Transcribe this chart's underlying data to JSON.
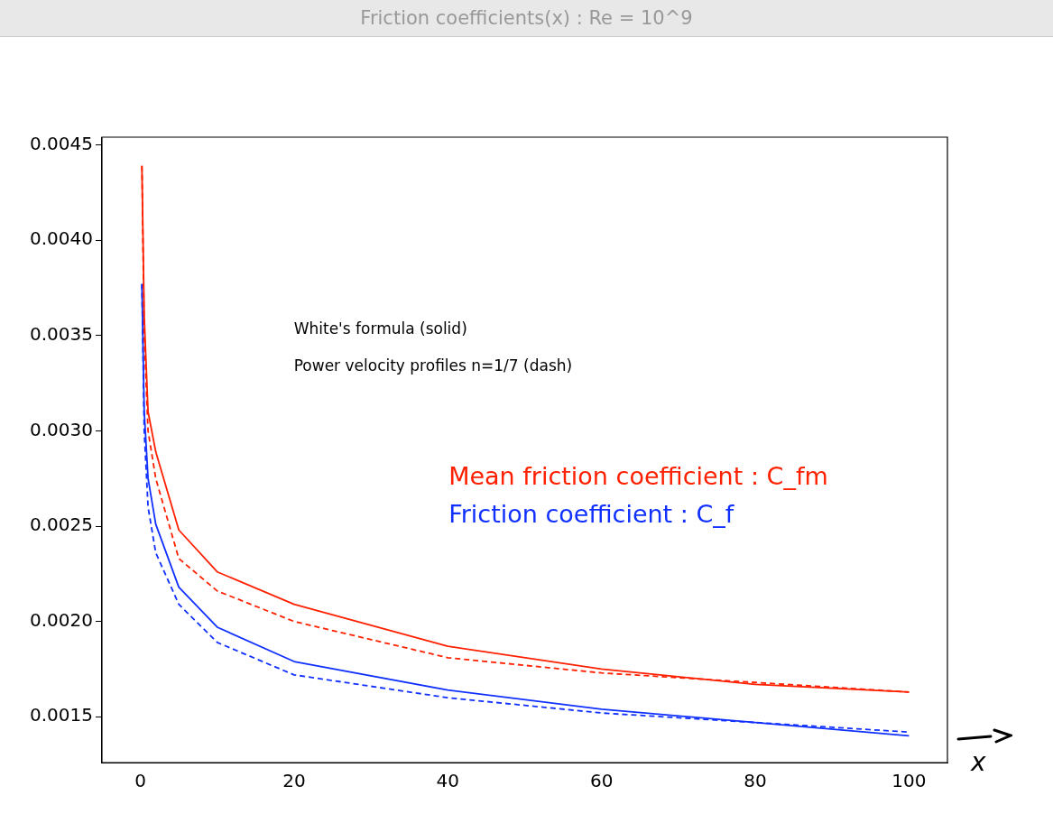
{
  "chart_data": {
    "type": "line",
    "title": "Friction coefficients(x) : Re = 10^9",
    "xlabel": "x",
    "annotations": [
      "White's formula (solid)",
      "Power velocity profiles n=1/7 (dash)"
    ],
    "xlim": [
      -5,
      105
    ],
    "xticks": [
      0,
      20,
      40,
      60,
      80,
      100
    ],
    "ylim": [
      0.00126,
      0.00454
    ],
    "yticks": [
      {
        "value": 0.0015,
        "label": "0.0015"
      },
      {
        "value": 0.002,
        "label": "0.0020"
      },
      {
        "value": 0.0025,
        "label": "0.0025"
      },
      {
        "value": 0.003,
        "label": "0.0030"
      },
      {
        "value": 0.0035,
        "label": "0.0035"
      },
      {
        "value": 0.004,
        "label": "0.0040"
      },
      {
        "value": 0.0045,
        "label": "0.0045"
      }
    ],
    "grid": false,
    "legend": false,
    "marker": "none",
    "series": [
      {
        "name": "Mean friction coefficient : C_fm",
        "color": "#ff2000",
        "line_style": "solid",
        "x": [
          0.2,
          0.5,
          1,
          2,
          5,
          10,
          20,
          40,
          60,
          80,
          100
        ],
        "values": [
          0.00439,
          0.0036,
          0.0031,
          0.00289,
          0.00248,
          0.00226,
          0.00209,
          0.00187,
          0.00175,
          0.00167,
          0.00163
        ]
      },
      {
        "color": "#ff2000",
        "line_style": "dashed",
        "x": [
          0.2,
          0.5,
          1,
          2,
          5,
          10,
          20,
          40,
          60,
          80,
          100
        ],
        "values": [
          0.00439,
          0.0035,
          0.003,
          0.00275,
          0.00233,
          0.00216,
          0.002,
          0.00181,
          0.00173,
          0.00168,
          0.00163
        ]
      },
      {
        "name": "Friction coefficient : C_f",
        "color": "#1030ff",
        "line_style": "solid",
        "x": [
          0.2,
          0.5,
          1,
          2,
          5,
          10,
          20,
          40,
          60,
          80,
          100
        ],
        "values": [
          0.00377,
          0.0031,
          0.00275,
          0.00251,
          0.00218,
          0.00197,
          0.00179,
          0.00164,
          0.00154,
          0.00147,
          0.0014
        ]
      },
      {
        "color": "#1030ff",
        "line_style": "dashed",
        "x": [
          0.2,
          0.5,
          1,
          2,
          5,
          10,
          20,
          40,
          60,
          80,
          100
        ],
        "values": [
          0.00377,
          0.003,
          0.0026,
          0.00236,
          0.00209,
          0.00189,
          0.00172,
          0.0016,
          0.00152,
          0.00147,
          0.00142
        ]
      }
    ]
  }
}
